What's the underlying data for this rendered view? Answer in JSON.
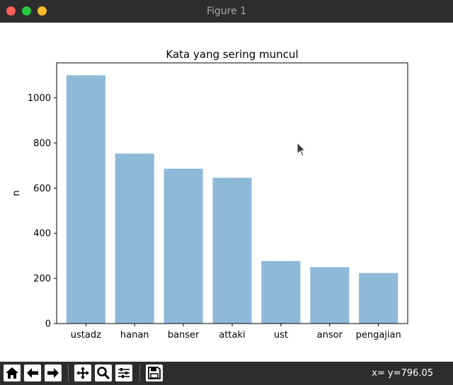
{
  "window": {
    "title": "Figure 1"
  },
  "chart_data": {
    "type": "bar",
    "title": "Kata yang sering muncul",
    "xlabel": "",
    "ylabel": "n",
    "categories": [
      "ustadz",
      "hanan",
      "banser",
      "attaki",
      "ust",
      "ansor",
      "pengajian"
    ],
    "values": [
      1100,
      753,
      686,
      646,
      277,
      250,
      224
    ],
    "ylim": [
      0,
      1155
    ],
    "yticks": [
      0,
      200,
      400,
      600,
      800,
      1000
    ],
    "bar_color": "#8fb9d9",
    "grid": false,
    "legend": "none"
  },
  "toolbar": {
    "buttons": [
      {
        "name": "home-button",
        "icon": "home-icon"
      },
      {
        "name": "back-button",
        "icon": "arrow-left-icon"
      },
      {
        "name": "forward-button",
        "icon": "arrow-right-icon"
      },
      {
        "name": "pan-button",
        "icon": "pan-icon"
      },
      {
        "name": "zoom-button",
        "icon": "zoom-icon"
      },
      {
        "name": "configure-subplots-button",
        "icon": "sliders-icon"
      },
      {
        "name": "save-button",
        "icon": "save-icon"
      }
    ],
    "coords_text": "x= y=796.05"
  }
}
